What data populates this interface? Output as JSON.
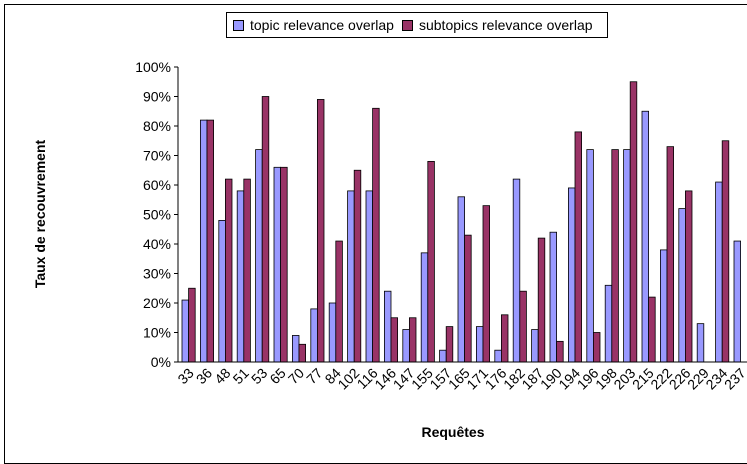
{
  "chart_data": {
    "type": "bar",
    "xlabel": "Requêtes",
    "ylabel": "Taux de recouvrement",
    "ylim": [
      0,
      100
    ],
    "yticks": [
      "0%",
      "10%",
      "20%",
      "30%",
      "40%",
      "50%",
      "60%",
      "70%",
      "80%",
      "90%",
      "100%"
    ],
    "categories": [
      "33",
      "36",
      "48",
      "51",
      "53",
      "65",
      "70",
      "77",
      "84",
      "102",
      "116",
      "146",
      "147",
      "155",
      "157",
      "165",
      "171",
      "176",
      "182",
      "187",
      "190",
      "194",
      "196",
      "198",
      "203",
      "215",
      "222",
      "226",
      "229",
      "234",
      "237"
    ],
    "series": [
      {
        "name": "topic relevance overlap",
        "color": "#9999ff",
        "values": [
          21,
          82,
          48,
          58,
          72,
          66,
          9,
          18,
          20,
          58,
          58,
          24,
          11,
          37,
          4,
          56,
          12,
          4,
          62,
          11,
          44,
          59,
          72,
          26,
          72,
          85,
          38,
          52,
          13,
          61,
          41
        ]
      },
      {
        "name": "subtopics relevance overlap",
        "color": "#993366",
        "values": [
          25,
          82,
          62,
          62,
          90,
          66,
          6,
          89,
          41,
          65,
          86,
          15,
          15,
          68,
          12,
          43,
          53,
          16,
          24,
          42,
          7,
          78,
          10,
          72,
          95,
          22,
          73,
          58,
          0,
          75,
          0
        ]
      }
    ],
    "legend_position": "top",
    "grid": false
  }
}
